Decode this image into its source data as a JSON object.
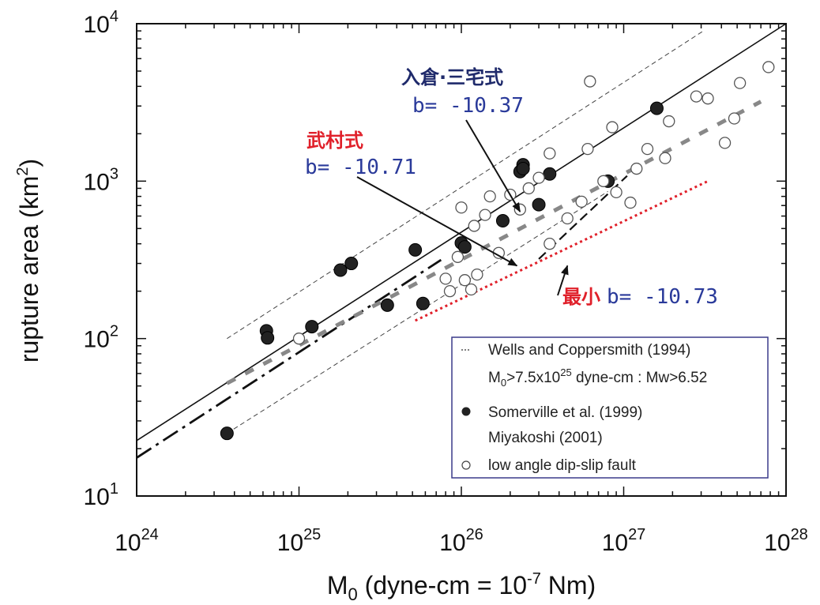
{
  "chart_data": {
    "type": "scatter",
    "title": "",
    "xlabel": "M0 (dyne-cm = 10^-7 Nm)",
    "ylabel": "rupture area (km2)",
    "x_scale": "log",
    "y_scale": "log",
    "xlim": [
      1e+24,
      1e+28
    ],
    "ylim": [
      10,
      10000
    ],
    "grid": false,
    "x_ticks": [
      {
        "base": "10",
        "exp": "24",
        "value": 1e+24
      },
      {
        "base": "10",
        "exp": "25",
        "value": 1e+25
      },
      {
        "base": "10",
        "exp": "26",
        "value": 1e+26
      },
      {
        "base": "10",
        "exp": "27",
        "value": 1e+27
      },
      {
        "base": "10",
        "exp": "28",
        "value": 1e+28
      }
    ],
    "y_ticks": [
      {
        "base": "10",
        "exp": "1",
        "value": 10
      },
      {
        "base": "10",
        "exp": "2",
        "value": 100
      },
      {
        "base": "10",
        "exp": "3",
        "value": 1000
      },
      {
        "base": "10",
        "exp": "4",
        "value": 10000
      }
    ],
    "series": [
      {
        "name": "Somerville et al. (1999)",
        "marker": "filled-circle",
        "color": "#222222",
        "points": [
          [
            3.6e+24,
            25
          ],
          [
            6.3e+24,
            112
          ],
          [
            6.4e+24,
            101
          ],
          [
            1.2e+25,
            119
          ],
          [
            1.8e+25,
            272
          ],
          [
            2.1e+25,
            300
          ],
          [
            3.5e+25,
            163
          ],
          [
            5.2e+25,
            366
          ],
          [
            5.8e+25,
            167
          ],
          [
            1e+26,
            405
          ],
          [
            1.05e+26,
            382
          ],
          [
            1.8e+26,
            560
          ],
          [
            2.3e+26,
            1150
          ],
          [
            2.4e+26,
            1270
          ],
          [
            2.4e+26,
            1200
          ],
          [
            3e+26,
            709
          ],
          [
            3.5e+26,
            1110
          ],
          [
            8e+26,
            1000
          ],
          [
            1.6e+27,
            2900
          ]
        ]
      },
      {
        "name": "low angle dip-slip fault",
        "marker": "open-circle",
        "color": "#222222",
        "points": [
          [
            1e+25,
            100
          ],
          [
            8e+25,
            240
          ],
          [
            8.5e+25,
            200
          ],
          [
            9.5e+25,
            330
          ],
          [
            1.05e+26,
            235
          ],
          [
            1.15e+26,
            205
          ],
          [
            1.25e+26,
            255
          ],
          [
            1e+26,
            680
          ],
          [
            1.2e+26,
            520
          ],
          [
            1.4e+26,
            610
          ],
          [
            1.5e+26,
            800
          ],
          [
            1.7e+26,
            350
          ],
          [
            2e+26,
            820
          ],
          [
            2.3e+26,
            660
          ],
          [
            2.6e+26,
            900
          ],
          [
            3e+26,
            1050
          ],
          [
            3.5e+26,
            1500
          ],
          [
            3.5e+26,
            400
          ],
          [
            4.5e+26,
            580
          ],
          [
            5.5e+26,
            740
          ],
          [
            6e+26,
            1600
          ],
          [
            6.2e+26,
            4300
          ],
          [
            7.5e+26,
            1000
          ],
          [
            8.5e+26,
            2200
          ],
          [
            9e+26,
            850
          ],
          [
            1.2e+27,
            1200
          ],
          [
            1.4e+27,
            1600
          ],
          [
            1.1e+27,
            730
          ],
          [
            1.8e+27,
            1400
          ],
          [
            1.9e+27,
            2400
          ],
          [
            2.8e+27,
            3450
          ],
          [
            3.3e+27,
            3350
          ],
          [
            4.2e+27,
            1750
          ],
          [
            4.8e+27,
            2500
          ],
          [
            5.2e+27,
            4200
          ],
          [
            7.8e+27,
            5300
          ]
        ]
      }
    ],
    "lines": [
      {
        "name": "",
        "style": "solid",
        "x": [
          1e+24,
          1e+28
        ],
        "y": [
          22.5,
          10000
        ]
      },
      {
        "name": "",
        "style": "dashdot",
        "x": [
          1e+24,
          7.5e+25
        ],
        "y": [
          17.5,
          316
        ]
      },
      {
        "name": "",
        "style": "wide-dashed",
        "x": [
          3.6e+24,
          7e+27
        ],
        "y": [
          52,
          3200
        ]
      },
      {
        "name": "",
        "style": "thin-dashed-upper",
        "x": [
          3.6e+24,
          3.1e+27
        ],
        "y": [
          100,
          9000
        ]
      },
      {
        "name": "",
        "style": "thin-dashed-lower",
        "x": [
          3.6e+24,
          8e+26
        ],
        "y": [
          25,
          860
        ]
      },
      {
        "name": "",
        "style": "dashed",
        "x": [
          3e+26,
          1.05e+27
        ],
        "y": [
          320,
          1080
        ]
      },
      {
        "name": "",
        "style": "red-dotted",
        "x": [
          5.2e+25,
          3.3e+27
        ],
        "y": [
          130,
          1000
        ]
      }
    ],
    "annotations": [
      {
        "label": "入倉·三宅式",
        "value": "b= -10.37",
        "arrow_to": [
          2.3e+26,
          640
        ]
      },
      {
        "label": "武村式",
        "value": "b= -10.71",
        "arrow_to": [
          2.2e+26,
          290
        ]
      },
      {
        "label": "最小",
        "value": "b= -10.73",
        "arrow_to": [
          4.5e+26,
          290
        ]
      }
    ],
    "legend": {
      "placement": "bottom-right",
      "entries": [
        {
          "symbol": "dotted-dash",
          "text": "Wells and Coppersmith (1994)"
        },
        {
          "symbol": "none",
          "text": "M0>7.5x1025 dyne-cm : Mw>6.52"
        },
        {
          "symbol": "filled-circle",
          "text": "Somerville et al. (1999)"
        },
        {
          "symbol": "none",
          "text": "Miyakoshi (2001)"
        },
        {
          "symbol": "open-circle",
          "text": "low angle dip-slip fault"
        }
      ]
    },
    "colors": {
      "frame": "#111111",
      "red_line": "#e0202a",
      "annotation_red": "#e0202a",
      "annotation_navy": "#1f2a6b",
      "b_value": "#2a3a9a",
      "legend_border": "#3a3a8a"
    }
  },
  "axis_text": {
    "y_title": "rupture area (km",
    "y_title_sup": "2",
    "y_title_end": ")",
    "x_title_main": "M",
    "x_title_sub": "0",
    "x_title_mid": " (dyne-cm = 10",
    "x_title_sup": "-7",
    "x_title_end": " Nm)"
  },
  "annotation_text": {
    "irikura_label": "入倉·三宅式",
    "irikura_b": "b= -10.37",
    "takemura_label": "武村式",
    "takemura_b": "b= -10.71",
    "min_label": "最小",
    "min_b": "b= -10.73"
  },
  "legend_text": {
    "wells": "Wells and Coppersmith (1994)",
    "m0_prefix": "M",
    "m0_sub": "0",
    "m0_mid": ">7.5x10",
    "m0_sup": "25",
    "m0_end": " dyne-cm : Mw>6.52",
    "somerville": "Somerville et al. (1999)",
    "miyakoshi": "Miyakoshi (2001)",
    "lowangle": "low angle dip-slip fault"
  }
}
